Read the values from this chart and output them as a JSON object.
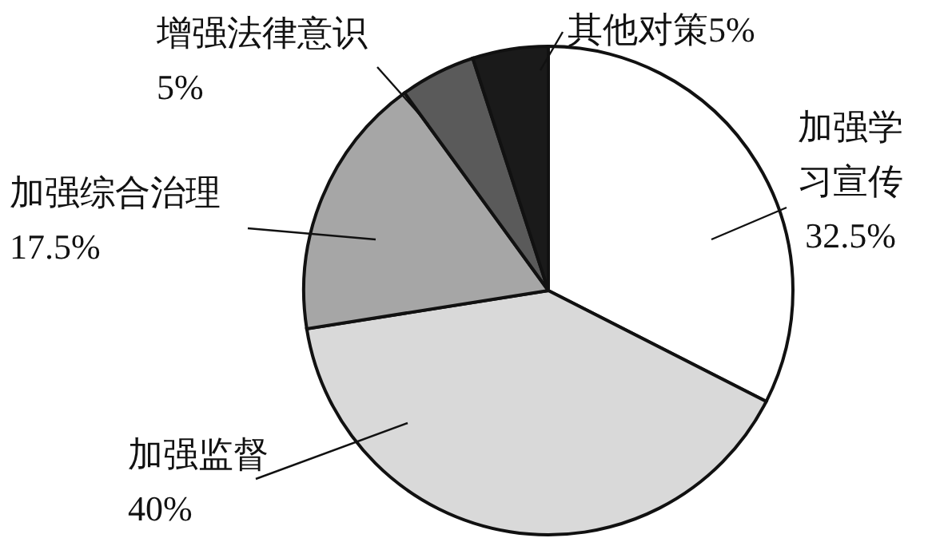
{
  "chart_data": {
    "type": "pie",
    "categories": [
      "加强学习宣传",
      "加强监督",
      "加强综合治理",
      "增强法律意识",
      "其他对策"
    ],
    "values": [
      32.5,
      40,
      17.5,
      5,
      5
    ],
    "value_labels": [
      "32.5%",
      "40%",
      "17.5%",
      "5%",
      "5%"
    ],
    "colors": [
      "#ffffff",
      "#d9d9d9",
      "#a6a6a6",
      "#5a5a5a",
      "#1a1a1a"
    ]
  }
}
